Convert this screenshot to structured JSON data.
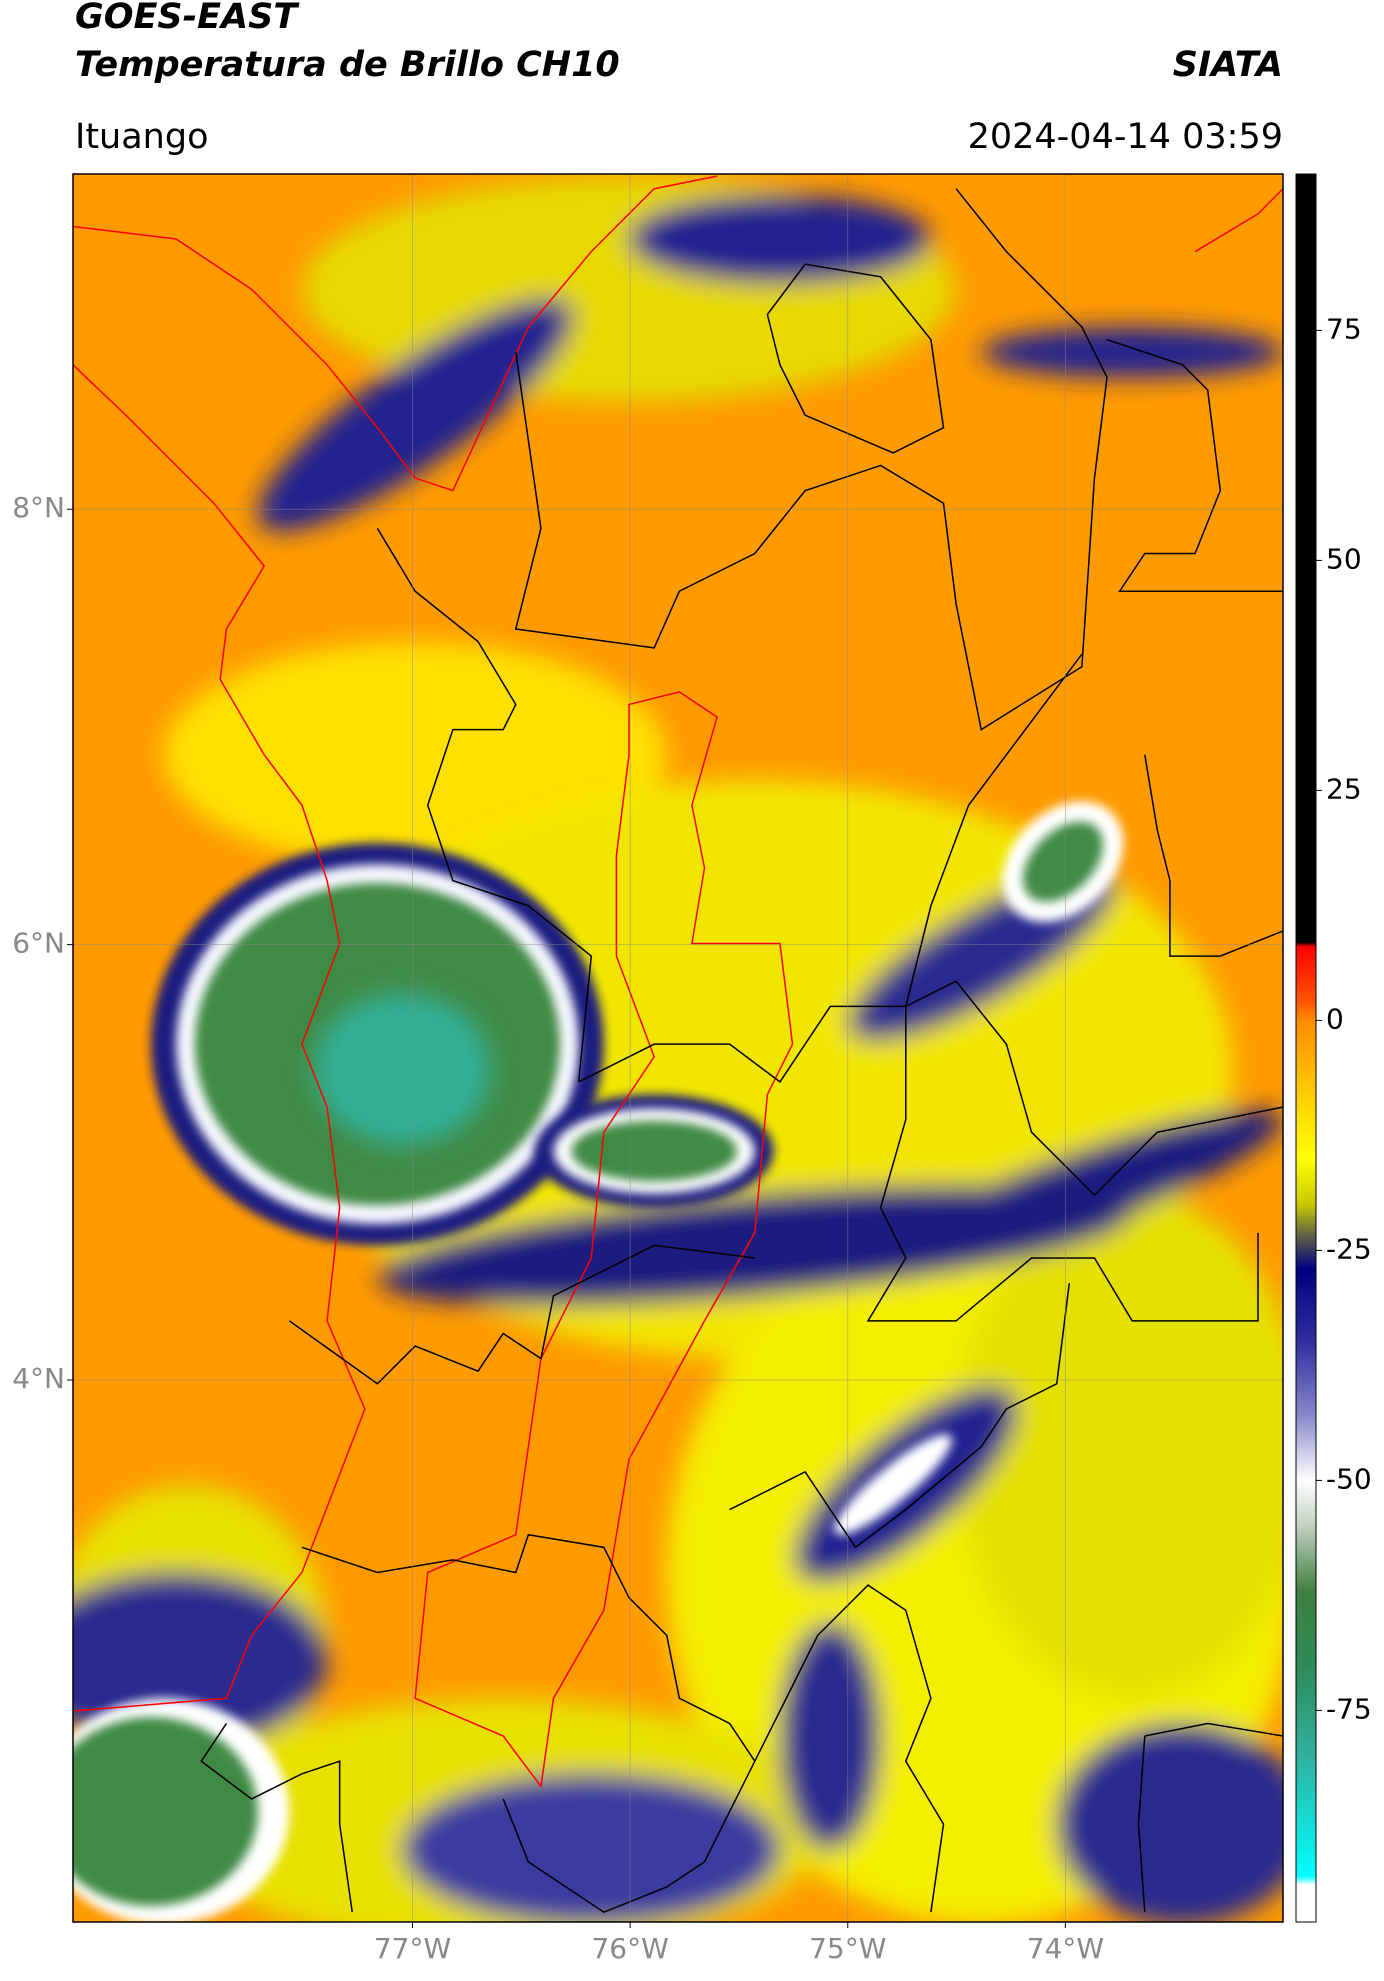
{
  "header": {
    "title": "GOES-EAST",
    "subtitle": "Temperatura de Brillo CH10",
    "source": "SIATA",
    "location": "Ituango",
    "datetime": "2024-04-14 03:59"
  },
  "map": {
    "xlim": [
      -78.56,
      -73.0
    ],
    "ylim": [
      1.51,
      9.54
    ],
    "xticks": [
      {
        "value": -77,
        "label": "77°W"
      },
      {
        "value": -76,
        "label": "76°W"
      },
      {
        "value": -75,
        "label": "75°W"
      },
      {
        "value": -74,
        "label": "74°W"
      }
    ],
    "yticks": [
      {
        "value": 4,
        "label": "4°N"
      },
      {
        "value": 6,
        "label": "6°N"
      },
      {
        "value": 8,
        "label": "8°N"
      }
    ],
    "grid": true
  },
  "colorbar": {
    "lim": [
      -98,
      92
    ],
    "ticks": [
      -75,
      -50,
      -25,
      0,
      25,
      50,
      75
    ],
    "stops": [
      {
        "value": 92,
        "color": "#000000"
      },
      {
        "value": 8.5,
        "color": "#000000"
      },
      {
        "value": 8,
        "color": "#ff0000"
      },
      {
        "value": 2,
        "color": "#ff5500"
      },
      {
        "value": 0,
        "color": "#ff8c00"
      },
      {
        "value": -8,
        "color": "#ffcc00"
      },
      {
        "value": -15,
        "color": "#ffff00"
      },
      {
        "value": -20,
        "color": "#c8c800"
      },
      {
        "value": -23,
        "color": "#6b6b40"
      },
      {
        "value": -27,
        "color": "#000080"
      },
      {
        "value": -35,
        "color": "#3030a0"
      },
      {
        "value": -43,
        "color": "#8888cc"
      },
      {
        "value": -50,
        "color": "#ffffff"
      },
      {
        "value": -55,
        "color": "#c0d0c0"
      },
      {
        "value": -62,
        "color": "#408040"
      },
      {
        "value": -70,
        "color": "#2e8b57"
      },
      {
        "value": -80,
        "color": "#30b0a0"
      },
      {
        "value": -93,
        "color": "#00ffff"
      },
      {
        "value": -94,
        "color": "#ffffff"
      },
      {
        "value": -98,
        "color": "#ffffff"
      }
    ]
  }
}
